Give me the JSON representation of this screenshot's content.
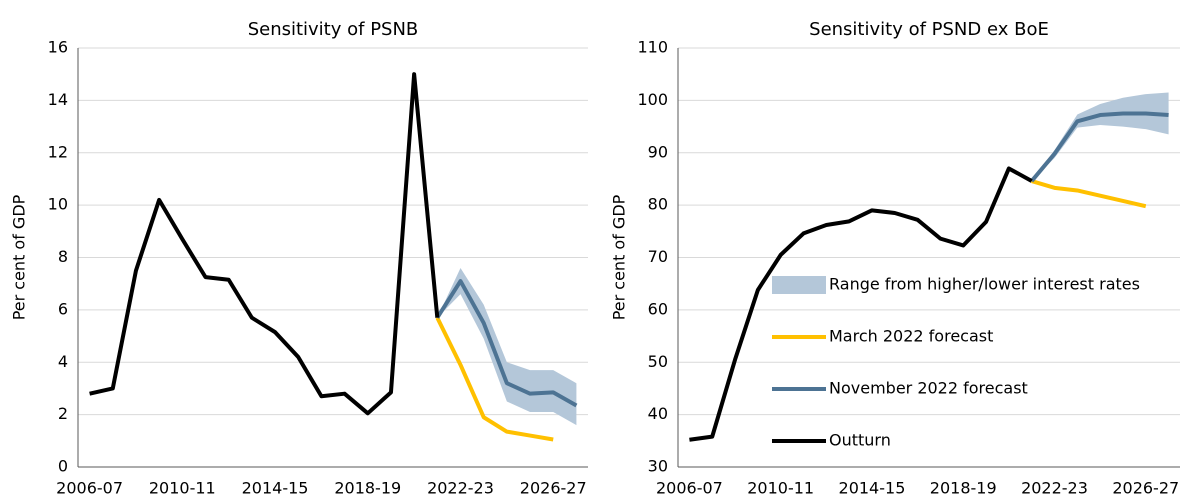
{
  "chart_data": [
    {
      "type": "line",
      "title": "Sensitivity of PSNB",
      "y_label": "Per cent of GDP",
      "categories": [
        "2006-07",
        null,
        null,
        null,
        "2010-11",
        null,
        null,
        null,
        "2014-15",
        null,
        null,
        null,
        "2018-19",
        null,
        null,
        null,
        "2022-23",
        null,
        null,
        null,
        "2026-27",
        null
      ],
      "ylim": [
        0,
        16
      ],
      "yticks": [
        0,
        2,
        4,
        6,
        8,
        10,
        12,
        14,
        16
      ],
      "grid": true,
      "legend": false,
      "series": [
        {
          "name": "Range from higher/lower interest rates",
          "color": "#b4c7d9",
          "lower": [
            null,
            null,
            null,
            null,
            null,
            null,
            null,
            null,
            null,
            null,
            null,
            null,
            null,
            null,
            null,
            5.7,
            6.6,
            4.9,
            2.5,
            2.1,
            2.1,
            1.6
          ],
          "upper": [
            null,
            null,
            null,
            null,
            null,
            null,
            null,
            null,
            null,
            null,
            null,
            null,
            null,
            null,
            null,
            5.7,
            7.6,
            6.2,
            4.0,
            3.7,
            3.7,
            3.2
          ]
        },
        {
          "name": "March 2022 forecast",
          "color": "#ffc000",
          "values": [
            null,
            null,
            null,
            null,
            null,
            null,
            null,
            null,
            null,
            null,
            null,
            null,
            null,
            null,
            null,
            5.7,
            3.9,
            1.9,
            1.35,
            1.2,
            1.05,
            null
          ]
        },
        {
          "name": "November 2022 forecast",
          "color": "#4d7393",
          "values": [
            null,
            null,
            null,
            null,
            null,
            null,
            null,
            null,
            null,
            null,
            null,
            null,
            null,
            null,
            null,
            5.7,
            7.1,
            5.5,
            3.2,
            2.8,
            2.85,
            2.35
          ]
        },
        {
          "name": "Outturn",
          "color": "#000000",
          "values": [
            2.8,
            3.0,
            7.5,
            10.2,
            8.7,
            7.25,
            7.15,
            5.7,
            5.15,
            4.2,
            2.7,
            2.8,
            2.05,
            2.85,
            15.0,
            5.7,
            null,
            null,
            null,
            null,
            null,
            null
          ]
        }
      ]
    },
    {
      "type": "line",
      "title": "Sensitivity of PSND ex BoE",
      "y_label": "Per cent of GDP",
      "categories": [
        "2006-07",
        null,
        null,
        null,
        "2010-11",
        null,
        null,
        null,
        "2014-15",
        null,
        null,
        null,
        "2018-19",
        null,
        null,
        null,
        "2022-23",
        null,
        null,
        null,
        "2026-27",
        null
      ],
      "ylim": [
        30,
        110
      ],
      "yticks": [
        30,
        40,
        50,
        60,
        70,
        80,
        90,
        100,
        110
      ],
      "grid": true,
      "legend": true,
      "series": [
        {
          "name": "Range from higher/lower interest rates",
          "color": "#b4c7d9",
          "lower": [
            null,
            null,
            null,
            null,
            null,
            null,
            null,
            null,
            null,
            null,
            null,
            null,
            null,
            null,
            null,
            84.6,
            89.0,
            94.8,
            95.3,
            95.0,
            94.5,
            93.5
          ],
          "upper": [
            null,
            null,
            null,
            null,
            null,
            null,
            null,
            null,
            null,
            null,
            null,
            null,
            null,
            null,
            null,
            84.6,
            90.5,
            97.3,
            99.3,
            100.5,
            101.2,
            101.5
          ]
        },
        {
          "name": "March 2022 forecast",
          "color": "#ffc000",
          "values": [
            null,
            null,
            null,
            null,
            null,
            null,
            null,
            null,
            null,
            null,
            null,
            null,
            null,
            null,
            null,
            84.6,
            83.3,
            82.8,
            81.8,
            80.8,
            79.8,
            null
          ]
        },
        {
          "name": "November 2022 forecast",
          "color": "#4d7393",
          "values": [
            null,
            null,
            null,
            null,
            null,
            null,
            null,
            null,
            null,
            null,
            null,
            null,
            null,
            null,
            null,
            84.6,
            89.8,
            96.0,
            97.2,
            97.5,
            97.5,
            97.2
          ]
        },
        {
          "name": "Outturn",
          "color": "#000000",
          "values": [
            35.2,
            35.8,
            50.5,
            63.8,
            70.5,
            74.6,
            76.2,
            76.9,
            79.0,
            78.5,
            77.2,
            73.6,
            72.3,
            76.8,
            87.0,
            84.6,
            null,
            null,
            null,
            null,
            null,
            null
          ]
        }
      ]
    }
  ]
}
